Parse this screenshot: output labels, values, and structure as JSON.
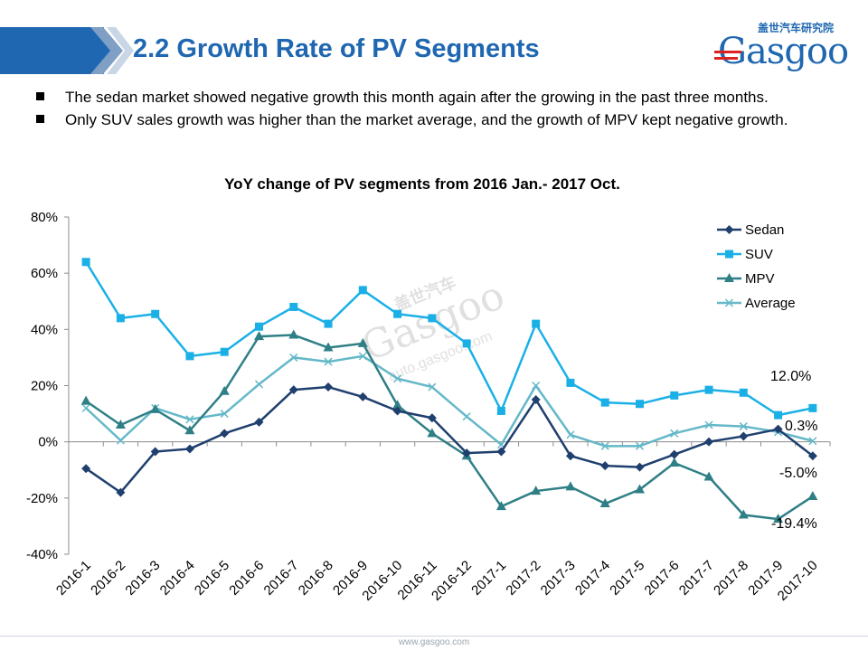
{
  "header": {
    "title": "2.2 Growth Rate of PV Segments",
    "logo_text": "Gasgoo",
    "logo_cn": "盖世汽车研究院"
  },
  "bullets": [
    "The sedan market showed negative growth this month again after the growing in the past three months.",
    "Only SUV sales growth was higher than the market average, and the growth of MPV kept negative growth."
  ],
  "watermark": {
    "cn": "盖世汽车",
    "brand": "Gasgoo",
    "url": "auto.gasgoo.com"
  },
  "footer": {
    "url": "www.gasgoo.com"
  },
  "colors": {
    "brand_blue": "#1f67b1",
    "sedan": "#1f3f6e",
    "suv": "#1ab0e6",
    "mpv": "#2f7f86",
    "average": "#64b8c8"
  },
  "chart_data": {
    "type": "line",
    "title": "YoY change of PV segments from 2016 Jan.- 2017 Oct.",
    "categories": [
      "2016-1",
      "2016-2",
      "2016-3",
      "2016-4",
      "2016-5",
      "2016-6",
      "2016-7",
      "2016-8",
      "2016-9",
      "2016-10",
      "2016-11",
      "2016-12",
      "2017-1",
      "2017-2",
      "2017-3",
      "2017-4",
      "2017-5",
      "2017-6",
      "2017-7",
      "2017-8",
      "2017-9",
      "2017-10"
    ],
    "ylim": [
      -40,
      80
    ],
    "yticks": [
      "-40%",
      "-20%",
      "0%",
      "20%",
      "40%",
      "60%",
      "80%"
    ],
    "legend_position": "top-right",
    "series": [
      {
        "name": "Sedan",
        "marker": "diamond",
        "color": "#1f3f6e",
        "values": [
          -9.5,
          -18,
          -3.5,
          -2.5,
          3,
          7,
          18.5,
          19.5,
          16,
          11,
          8.5,
          -4,
          -3.5,
          15,
          -5,
          -8.5,
          -9,
          -4.5,
          0,
          2,
          4.5,
          -5.0
        ]
      },
      {
        "name": "SUV",
        "marker": "square",
        "color": "#1ab0e6",
        "values": [
          64,
          44,
          45.5,
          30.5,
          32,
          41,
          48,
          42,
          54,
          45.5,
          44,
          35,
          11,
          42,
          21,
          14,
          13.5,
          16.5,
          18.5,
          17.5,
          9.5,
          12.0
        ]
      },
      {
        "name": "MPV",
        "marker": "triangle",
        "color": "#2f7f86",
        "values": [
          14.5,
          6,
          11.5,
          4,
          18,
          37.5,
          38,
          33.5,
          35,
          13,
          3,
          -5,
          -23,
          -17.5,
          -16,
          -22,
          -17,
          -7.5,
          -12.5,
          -26,
          -27.5,
          -19.4
        ]
      },
      {
        "name": "Average",
        "marker": "x",
        "color": "#64b8c8",
        "values": [
          12,
          0.5,
          12,
          8,
          10,
          20.5,
          30,
          28.5,
          30.5,
          22.5,
          19.5,
          9,
          -1,
          20,
          2.5,
          -1.5,
          -1.5,
          3,
          6,
          5.5,
          3.5,
          0.3
        ]
      }
    ],
    "annotations": [
      "12.0%",
      "0.3%",
      "-5.0%",
      "-19.4%"
    ]
  }
}
